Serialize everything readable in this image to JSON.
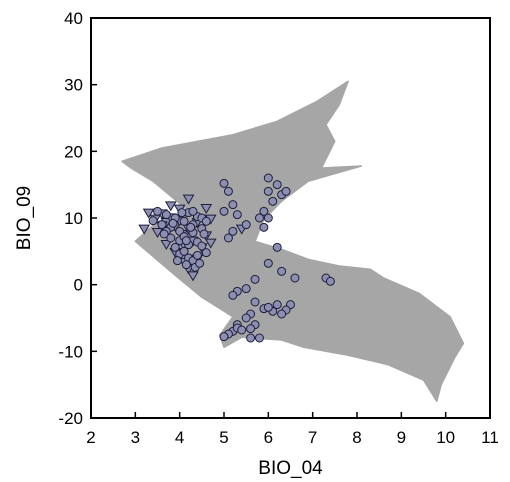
{
  "chart_data": {
    "type": "scatter",
    "xlabel": "BIO_04",
    "ylabel": "BIO_09",
    "xlim": [
      2,
      11
    ],
    "ylim": [
      -20,
      40
    ],
    "xticks": [
      "2",
      "3",
      "4",
      "5",
      "6",
      "7",
      "8",
      "9",
      "10",
      "11"
    ],
    "yticks": [
      "-20",
      "-10",
      "0",
      "10",
      "20",
      "30",
      "40"
    ],
    "grid": false,
    "legend": "none",
    "colors": {
      "background_cloud": "#a6a6a6",
      "marker_fill": "#8c8fb0",
      "marker_edge": "#1e1e3c"
    },
    "background_region": [
      [
        2.7,
        18.5
      ],
      [
        3.6,
        20.5
      ],
      [
        5.2,
        22.5
      ],
      [
        6.2,
        24.5
      ],
      [
        7.1,
        27.5
      ],
      [
        7.8,
        30.5
      ],
      [
        7.6,
        27
      ],
      [
        7.3,
        24
      ],
      [
        7.5,
        21.5
      ],
      [
        7.2,
        17.5
      ],
      [
        8.1,
        17.8
      ],
      [
        6.9,
        15.5
      ],
      [
        6.3,
        12.5
      ],
      [
        5.9,
        9.8
      ],
      [
        5.7,
        6.5
      ],
      [
        6.3,
        5.3
      ],
      [
        6.9,
        3.8
      ],
      [
        7.6,
        2.8
      ],
      [
        8.3,
        2.3
      ],
      [
        8.6,
        1.0
      ],
      [
        9.4,
        -1.3
      ],
      [
        10.1,
        -4.8
      ],
      [
        10.4,
        -8.8
      ],
      [
        10.2,
        -11.0
      ],
      [
        9.9,
        -15.0
      ],
      [
        9.8,
        -17.5
      ],
      [
        9.5,
        -14.3
      ],
      [
        8.7,
        -12.0
      ],
      [
        7.8,
        -10.6
      ],
      [
        6.8,
        -9.4
      ],
      [
        6.3,
        -8.3
      ],
      [
        5.4,
        -7.9
      ],
      [
        5.0,
        -9.4
      ],
      [
        4.9,
        -7.6
      ],
      [
        5.2,
        -4.8
      ],
      [
        4.5,
        -1.9
      ],
      [
        3.9,
        1.4
      ],
      [
        3.0,
        6.5
      ],
      [
        3.5,
        9.5
      ],
      [
        4.3,
        10.5
      ],
      [
        3.4,
        15.5
      ],
      [
        2.9,
        17.5
      ]
    ],
    "series": [
      {
        "marker": "triangle",
        "points": [
          [
            3.3,
            10.8
          ],
          [
            3.45,
            9.9
          ],
          [
            3.6,
            10.7
          ],
          [
            3.7,
            9.4
          ],
          [
            3.8,
            10.1
          ],
          [
            3.9,
            8.8
          ],
          [
            4.0,
            9.6
          ],
          [
            4.05,
            7.6
          ],
          [
            4.1,
            10.4
          ],
          [
            4.2,
            8.4
          ],
          [
            4.3,
            6.6
          ],
          [
            4.4,
            9.4
          ],
          [
            4.5,
            5.6
          ],
          [
            4.6,
            11.5
          ],
          [
            3.5,
            7.9
          ],
          [
            3.7,
            6.1
          ],
          [
            3.9,
            4.9
          ],
          [
            4.1,
            3.4
          ],
          [
            4.2,
            2.4
          ],
          [
            4.3,
            1.4
          ],
          [
            4.4,
            3.9
          ],
          [
            4.2,
            12.9
          ],
          [
            4.0,
            11.4
          ],
          [
            3.2,
            8.4
          ],
          [
            4.7,
            9.9
          ],
          [
            4.6,
            7.4
          ],
          [
            3.8,
            11.9
          ],
          [
            4.1,
            5.9
          ],
          [
            3.6,
            8.9
          ],
          [
            5.4,
            8.4
          ],
          [
            4.7,
            6.3
          ]
        ]
      },
      {
        "marker": "circle",
        "points": [
          [
            3.4,
            9.6
          ],
          [
            3.5,
            11.0
          ],
          [
            3.6,
            9.0
          ],
          [
            3.7,
            10.5
          ],
          [
            3.8,
            8.6
          ],
          [
            3.9,
            10.0
          ],
          [
            4.0,
            8.0
          ],
          [
            4.1,
            9.5
          ],
          [
            4.2,
            10.8
          ],
          [
            4.3,
            9.0
          ],
          [
            4.4,
            10.2
          ],
          [
            4.5,
            8.4
          ],
          [
            4.0,
            6.6
          ],
          [
            4.1,
            7.2
          ],
          [
            4.2,
            6.0
          ],
          [
            4.3,
            7.8
          ],
          [
            4.4,
            6.4
          ],
          [
            3.9,
            5.6
          ],
          [
            4.0,
            4.6
          ],
          [
            4.1,
            5.0
          ],
          [
            4.2,
            4.0
          ],
          [
            4.3,
            3.6
          ],
          [
            4.4,
            4.4
          ],
          [
            4.5,
            5.8
          ],
          [
            4.6,
            4.8
          ],
          [
            3.8,
            7.0
          ],
          [
            3.7,
            8.0
          ],
          [
            4.5,
            10.0
          ],
          [
            4.6,
            9.5
          ],
          [
            4.3,
            11.0
          ],
          [
            3.95,
            3.6
          ],
          [
            4.15,
            3.0
          ],
          [
            4.35,
            2.6
          ],
          [
            4.05,
            10.8
          ],
          [
            4.55,
            7.6
          ],
          [
            4.25,
            8.6
          ],
          [
            3.85,
            9.2
          ],
          [
            4.45,
            3.2
          ],
          [
            4.15,
            6.6
          ],
          [
            3.65,
            7.6
          ],
          [
            5.0,
            15.2
          ],
          [
            5.1,
            14.0
          ],
          [
            5.2,
            12.0
          ],
          [
            5.3,
            10.5
          ],
          [
            5.2,
            8.0
          ],
          [
            5.1,
            7.0
          ],
          [
            5.0,
            11.0
          ],
          [
            5.5,
            9.0
          ],
          [
            5.8,
            10.0
          ],
          [
            5.9,
            11.0
          ],
          [
            6.0,
            10.0
          ],
          [
            6.1,
            12.5
          ],
          [
            6.0,
            14.0
          ],
          [
            6.2,
            15.0
          ],
          [
            6.3,
            13.5
          ],
          [
            6.4,
            14.0
          ],
          [
            6.0,
            16.0
          ],
          [
            5.9,
            8.6
          ],
          [
            6.2,
            5.6
          ],
          [
            6.0,
            3.2
          ],
          [
            6.3,
            2.0
          ],
          [
            6.6,
            1.0
          ],
          [
            7.3,
            1.0
          ],
          [
            7.4,
            0.5
          ],
          [
            5.7,
            0.8
          ],
          [
            5.5,
            -0.6
          ],
          [
            5.3,
            -1.0
          ],
          [
            5.2,
            -1.6
          ],
          [
            5.7,
            -2.6
          ],
          [
            5.9,
            -3.6
          ],
          [
            6.1,
            -4.0
          ],
          [
            6.0,
            -3.4
          ],
          [
            6.2,
            -3.0
          ],
          [
            6.5,
            -3.0
          ],
          [
            6.4,
            -3.8
          ],
          [
            5.6,
            -4.4
          ],
          [
            5.5,
            -5.0
          ],
          [
            5.7,
            -6.0
          ],
          [
            5.3,
            -6.0
          ],
          [
            5.2,
            -7.0
          ],
          [
            5.1,
            -7.4
          ],
          [
            5.3,
            -6.5
          ],
          [
            5.6,
            -6.6
          ],
          [
            5.0,
            -7.8
          ],
          [
            5.8,
            -8.0
          ],
          [
            5.6,
            -8.0
          ],
          [
            5.4,
            -6.8
          ],
          [
            6.3,
            -4.4
          ]
        ]
      }
    ]
  }
}
